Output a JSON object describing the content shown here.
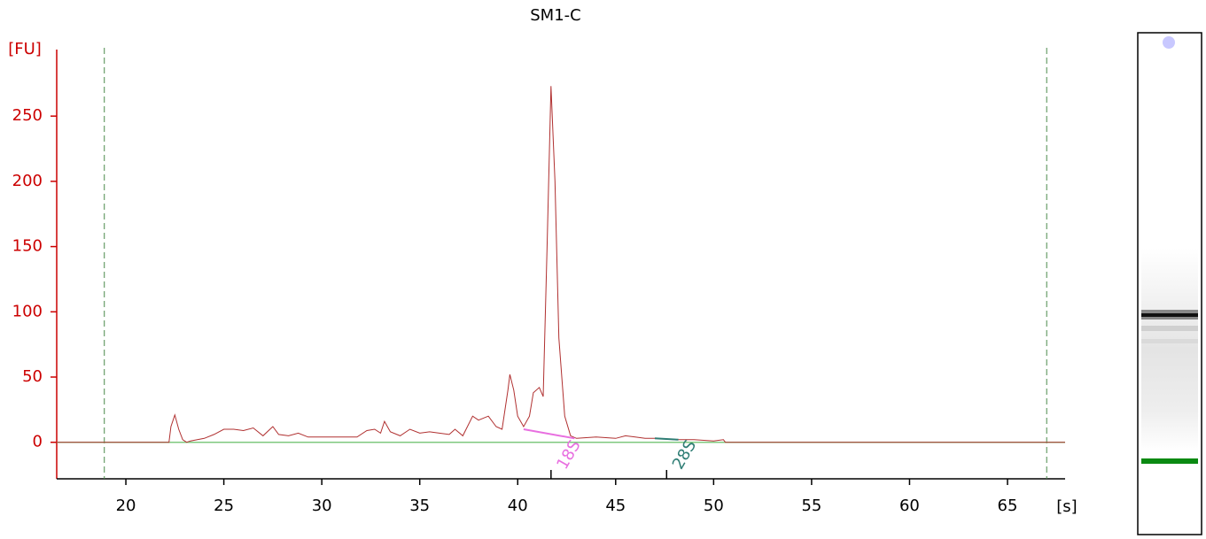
{
  "chart_data": {
    "type": "line",
    "title": "SM1-C",
    "y_label": "[FU]",
    "x_label": "[s]",
    "axis_color": "#cc0000",
    "xlim": [
      16.47,
      67.94
    ],
    "xticks": [
      20,
      25,
      30,
      35,
      40,
      45,
      50,
      55,
      60,
      65
    ],
    "ylim": [
      -28,
      301
    ],
    "yticks": [
      0,
      50,
      100,
      150,
      200,
      250
    ],
    "series": [
      {
        "color": "#b03030",
        "x": [
          16.47,
          22.2,
          22.3,
          22.5,
          22.7,
          22.9,
          23.1,
          23.3,
          24,
          24.5,
          25,
          25.5,
          26,
          26.5,
          27,
          27.5,
          27.8,
          28.3,
          28.8,
          29.3,
          30,
          31,
          31.8,
          32.3,
          32.7,
          33,
          33.2,
          33.5,
          34,
          34.5,
          35,
          35.5,
          36,
          36.5,
          36.8,
          37.2,
          37.7,
          38,
          38.5,
          38.9,
          39.2,
          39.5,
          39.6,
          39.8,
          40,
          40.3,
          40.6,
          40.8,
          41.1,
          41.3,
          41.5,
          41.7,
          41.9,
          42.1,
          42.4,
          42.7,
          43,
          44,
          45,
          45.5,
          46,
          46.5,
          47,
          48,
          49,
          50,
          50.5,
          50.6,
          67.94
        ],
        "values": [
          0,
          0,
          12,
          21,
          10,
          2,
          0,
          1,
          3,
          6,
          10,
          10,
          9,
          11,
          5,
          12,
          6,
          5,
          7,
          4,
          4,
          4,
          4,
          9,
          10,
          7,
          16,
          8,
          5,
          10,
          7,
          8,
          7,
          6,
          10,
          5,
          20,
          17,
          20,
          12,
          10,
          40,
          52,
          40,
          20,
          12,
          20,
          38,
          42,
          35,
          150,
          273,
          200,
          80,
          20,
          5,
          3,
          4,
          3,
          5,
          4,
          3,
          3,
          2,
          2,
          1,
          2,
          0,
          0
        ]
      }
    ],
    "baseline": {
      "color": "#7fc97f",
      "value": 0
    },
    "markers": {
      "color": "#4a8a4a",
      "x": [
        18.9,
        67.0
      ]
    },
    "peaks": [
      {
        "label": "18S",
        "color": "#e86fe0",
        "x": 41.7,
        "baseline_x": [
          40.3,
          42.9
        ],
        "baseline_y": [
          10,
          3
        ]
      },
      {
        "label": "28S",
        "color": "#2e7d74",
        "x": 47.6,
        "baseline_x": [
          47.0,
          48.2
        ],
        "baseline_y": [
          3,
          2
        ]
      }
    ]
  }
}
